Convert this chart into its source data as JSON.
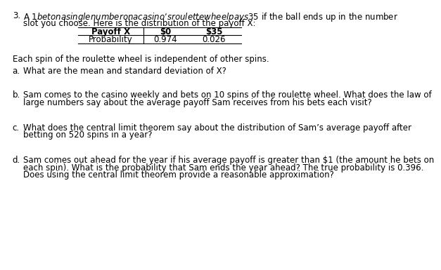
{
  "problem_number": "3.",
  "intro_line1": "A $1 bet on a single number on a casino’s roulette wheel pays $35 if the ball ends up in the number",
  "intro_line2": "slot you choose. Here is the distribution of the payoff X:",
  "table": {
    "col1_header": "Payoff X",
    "col2_header": "$0",
    "col3_header": "$35",
    "row2_col1": "Probability",
    "row2_col2": "0.974",
    "row2_col3": "0.026"
  },
  "independence_text": "Each spin of the roulette wheel is independent of other spins.",
  "part_a_label": "a.",
  "part_a_text": "What are the mean and standard deviation of X?",
  "part_b_label": "b.",
  "part_b_line1": "Sam comes to the casino weekly and bets on 10 spins of the roulette wheel. What does the law of",
  "part_b_line2": "large numbers say about the average payoff Sam receives from his bets each visit?",
  "part_c_label": "c.",
  "part_c_line1": "What does the central limit theorem say about the distribution of Sam’s average payoff after",
  "part_c_line2": "betting on 520 spins in a year?",
  "part_d_label": "d.",
  "part_d_line1": "Sam comes out ahead for the year if his average payoff is greater than $1 (the amount he bets on",
  "part_d_line2": "each spin). What is the probability that Sam ends the year ahead? The true probability is 0.396.",
  "part_d_line3": "Does using the central limit theorem provide a reasonable approximation?",
  "bg_color": "#ffffff",
  "text_color": "#000000",
  "font_size": 8.5
}
